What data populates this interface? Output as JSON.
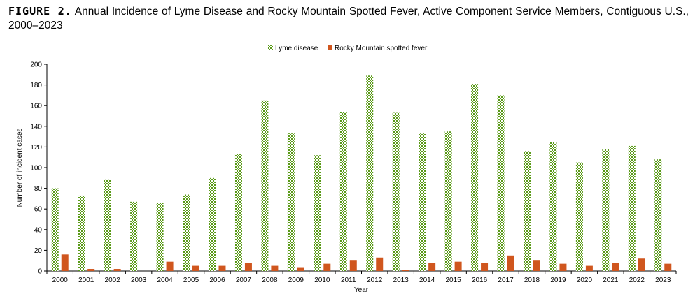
{
  "caption": {
    "label": "FIGURE 2.",
    "text": "Annual Incidence of Lyme Disease and Rocky Mountain Spotted Fever, Active Component Service Members, Contiguous U.S., 2000–2023"
  },
  "colors": {
    "lyme": "#5a9a18",
    "rmsf": "#d0561e",
    "axis": "#000000"
  },
  "chart_data": {
    "type": "bar",
    "categories": [
      "2000",
      "2001",
      "2002",
      "2003",
      "2004",
      "2005",
      "2006",
      "2007",
      "2008",
      "2009",
      "2010",
      "2011",
      "2012",
      "2013",
      "2014",
      "2015",
      "2016",
      "2017",
      "2018",
      "2019",
      "2020",
      "2021",
      "2022",
      "2023"
    ],
    "series": [
      {
        "name": "Lyme disease",
        "pattern": "checkered-green",
        "values": [
          80,
          73,
          88,
          67,
          66,
          74,
          90,
          113,
          165,
          133,
          112,
          154,
          189,
          153,
          133,
          135,
          181,
          170,
          116,
          125,
          105,
          118,
          121,
          108
        ]
      },
      {
        "name": "Rocky Mountain spotted fever",
        "pattern": "solid-orange",
        "values": [
          16,
          2,
          2,
          0,
          9,
          5,
          5,
          8,
          5,
          3,
          7,
          10,
          13,
          1,
          8,
          9,
          8,
          15,
          10,
          7,
          5,
          8,
          12,
          7
        ]
      }
    ],
    "xlabel": "Year",
    "ylabel": "Number of incident cases",
    "ylim": [
      0,
      200
    ],
    "yticks": [
      0,
      20,
      40,
      60,
      80,
      100,
      120,
      140,
      160,
      180,
      200
    ],
    "legend": "top-center",
    "grid": false
  }
}
